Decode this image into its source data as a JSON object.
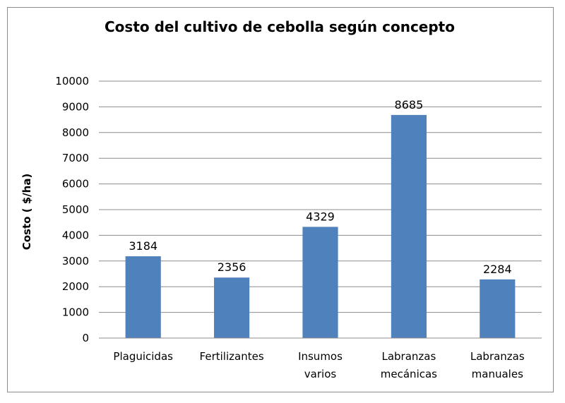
{
  "chart_data": {
    "type": "bar",
    "title": "Costo del cultivo de cebolla según concepto",
    "xlabel": "",
    "ylabel": "Costo ( $/ha)",
    "categories": [
      [
        "Plaguicidas"
      ],
      [
        "Fertilizantes"
      ],
      [
        "Insumos",
        "varios"
      ],
      [
        "Labranzas",
        "mecánicas"
      ],
      [
        "Labranzas",
        "manuales"
      ]
    ],
    "values": [
      3184,
      2356,
      4329,
      8685,
      2284
    ],
    "data_labels": [
      "3184",
      "2356",
      "4329",
      "8685",
      "2284"
    ],
    "yticks": [
      0,
      1000,
      2000,
      3000,
      4000,
      5000,
      6000,
      7000,
      8000,
      9000,
      10000
    ],
    "ylim": [
      0,
      10000
    ],
    "grid": true,
    "legend": "none",
    "colors": {
      "bar": "#4f81bd",
      "grid": "#8c8c8c",
      "axis": "#8c8c8c",
      "text": "#000000"
    }
  }
}
